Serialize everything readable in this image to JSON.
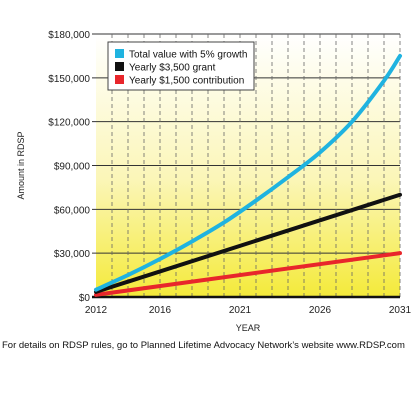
{
  "chart_data": {
    "type": "line",
    "xlabel": "YEAR",
    "ylabel": "Amount in RDSP",
    "x_ticks": [
      "2012",
      "2016",
      "2021",
      "2026",
      "2031"
    ],
    "y_ticks": [
      "$0",
      "$30,000",
      "$60,000",
      "$90,000",
      "$120,000",
      "$150,000",
      "$180,000"
    ],
    "xlim": [
      2012,
      2031
    ],
    "ylim": [
      0,
      180000
    ],
    "legend_position": "top-left",
    "background": "yellow-gradient",
    "series": [
      {
        "name": "Total value with 5% growth",
        "color": "#1fb3e0",
        "x": [
          2012,
          2014,
          2016,
          2018,
          2020,
          2022,
          2024,
          2026,
          2028,
          2030,
          2031
        ],
        "y": [
          5000,
          15000,
          26000,
          38000,
          51000,
          66000,
          82000,
          99000,
          120000,
          148000,
          165000
        ]
      },
      {
        "name": "Yearly $3,500 grant",
        "color": "#111111",
        "x": [
          2012,
          2031
        ],
        "y": [
          3500,
          70000
        ]
      },
      {
        "name": "Yearly $1,500 contribution",
        "color": "#e8262b",
        "x": [
          2012,
          2031
        ],
        "y": [
          1500,
          30000
        ]
      }
    ],
    "footnote": "For details on RDSP rules, go to Planned Lifetime Advocacy Network’s website www.RDSP.com"
  }
}
